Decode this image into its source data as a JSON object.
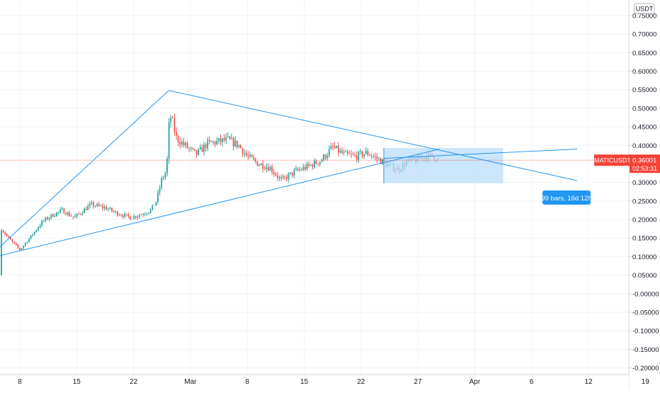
{
  "symbol": "MATICUSDT",
  "price_label": "0.36001",
  "countdown": "02:53:31",
  "currency": "USDT",
  "measure_label": "99 bars, 16d 12h",
  "colors": {
    "up": "#26a69a",
    "down": "#ef5350",
    "drawing": "#2196f3",
    "price_line": "#f44336",
    "range_fill": "#bbdefb",
    "axis_text": "#131722",
    "axis_line": "#d1d4dc"
  },
  "chart_data": {
    "type": "candlestick",
    "ylim": [
      -0.2,
      0.75
    ],
    "y_ticks": [
      "0.75000",
      "0.70000",
      "0.65000",
      "0.60000",
      "0.55000",
      "0.50000",
      "0.45000",
      "0.40000",
      "0.35000",
      "0.30000",
      "0.25000",
      "0.20000",
      "0.15000",
      "0.10000",
      "0.05000",
      "-0.00000",
      "-0.05000",
      "-0.10000",
      "-0.15000",
      "-0.20000"
    ],
    "x_ticks": [
      "8",
      "15",
      "22",
      "Mar",
      "8",
      "15",
      "22",
      "27",
      "Apr",
      "6",
      "12",
      "19"
    ],
    "last_price": 0.36001,
    "trendlines": [
      {
        "from": [
          -0.58,
          0.094
        ],
        "to": [
          7.38,
          0.39
        ]
      },
      {
        "from": [
          -0.58,
          0.094
        ],
        "to": [
          2.62,
          0.548
        ]
      },
      {
        "from": [
          2.62,
          0.548
        ],
        "to": [
          9.8,
          0.305
        ]
      }
    ],
    "date_range": {
      "from": 6.4,
      "to": 8.5,
      "y_from": 0.298,
      "y_to": 0.393
    },
    "anchors": [
      [
        -3.0,
        0.05
      ],
      [
        -2.6,
        0.055
      ],
      [
        -2.45,
        0.085
      ],
      [
        -2.25,
        0.138
      ],
      [
        -2.1,
        0.145
      ],
      [
        -1.8,
        0.13
      ],
      [
        -1.5,
        0.128
      ],
      [
        -1.2,
        0.105
      ],
      [
        -1.0,
        0.12
      ],
      [
        -0.8,
        0.12
      ],
      [
        -0.55,
        0.162
      ],
      [
        -0.35,
        0.18
      ],
      [
        -0.2,
        0.15
      ],
      [
        0.0,
        0.118
      ],
      [
        0.2,
        0.155
      ],
      [
        0.4,
        0.195
      ],
      [
        0.55,
        0.21
      ],
      [
        0.75,
        0.225
      ],
      [
        0.95,
        0.205
      ],
      [
        1.25,
        0.24
      ],
      [
        1.5,
        0.232
      ],
      [
        1.7,
        0.218
      ],
      [
        1.95,
        0.205
      ],
      [
        2.15,
        0.215
      ],
      [
        2.3,
        0.225
      ],
      [
        2.4,
        0.25
      ],
      [
        2.5,
        0.31
      ],
      [
        2.58,
        0.33
      ],
      [
        2.62,
        0.45
      ],
      [
        2.66,
        0.48
      ],
      [
        2.75,
        0.42
      ],
      [
        2.9,
        0.4
      ],
      [
        3.1,
        0.375
      ],
      [
        3.3,
        0.405
      ],
      [
        3.5,
        0.41
      ],
      [
        3.65,
        0.415
      ],
      [
        3.85,
        0.4
      ],
      [
        4.0,
        0.37
      ],
      [
        4.2,
        0.35
      ],
      [
        4.4,
        0.34
      ],
      [
        4.6,
        0.305
      ],
      [
        4.85,
        0.33
      ],
      [
        5.1,
        0.345
      ],
      [
        5.3,
        0.36
      ],
      [
        5.5,
        0.395
      ],
      [
        5.7,
        0.375
      ],
      [
        5.9,
        0.37
      ],
      [
        6.1,
        0.38
      ],
      [
        6.3,
        0.363
      ],
      [
        6.5,
        0.345
      ],
      [
        6.65,
        0.335
      ],
      [
        6.8,
        0.355
      ],
      [
        6.95,
        0.36
      ],
      [
        7.1,
        0.37
      ],
      [
        7.25,
        0.372
      ],
      [
        7.36,
        0.36
      ]
    ]
  }
}
